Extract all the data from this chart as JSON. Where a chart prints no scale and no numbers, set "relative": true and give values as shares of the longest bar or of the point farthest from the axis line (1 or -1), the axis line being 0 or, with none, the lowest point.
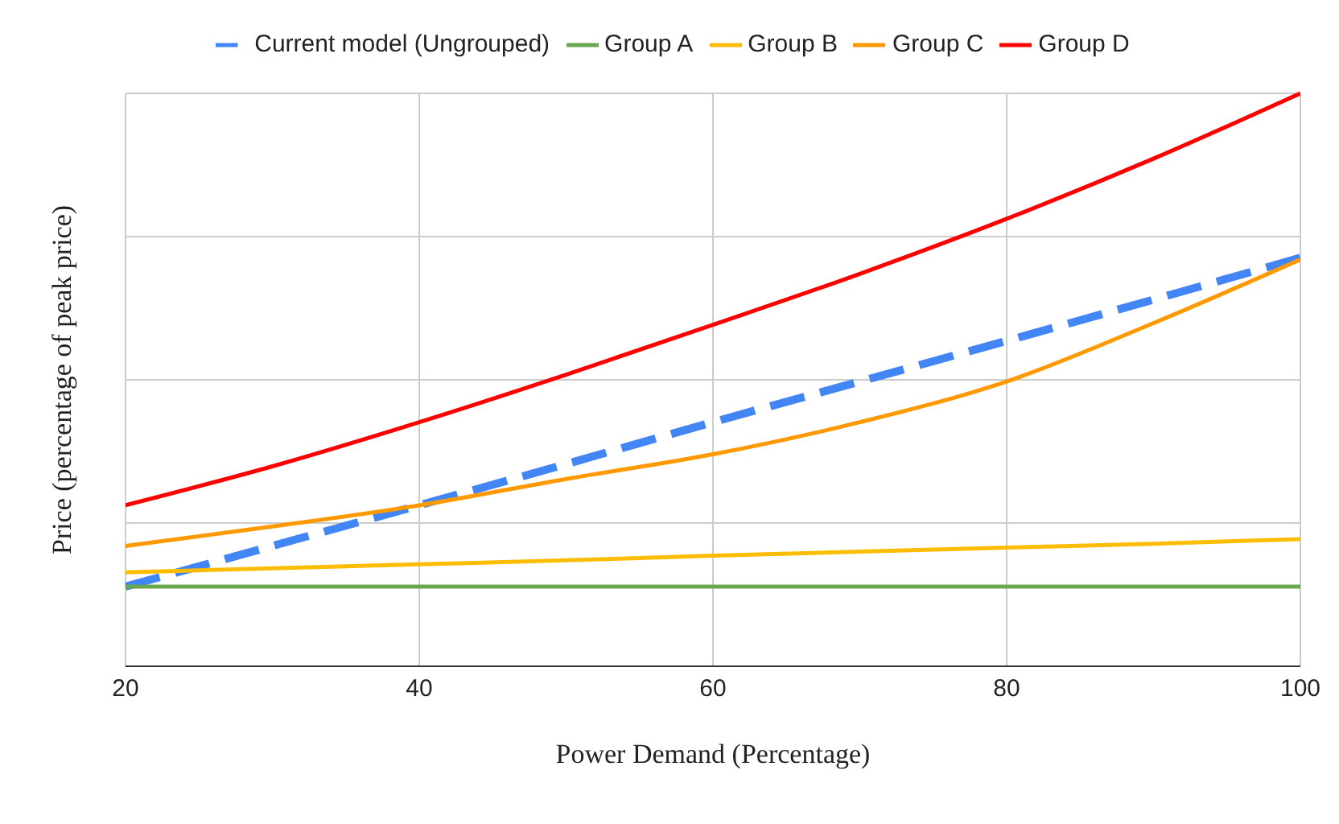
{
  "chart_data": {
    "type": "line",
    "relative": true,
    "xlabel": "Power Demand (Percentage)",
    "ylabel": "Price (percentage of peak price)",
    "x": [
      20,
      30,
      40,
      50,
      60,
      70,
      80,
      90,
      100
    ],
    "xlim": [
      20,
      100
    ],
    "xticks": [
      20,
      40,
      60,
      80,
      100
    ],
    "grid": true,
    "legend": "top",
    "marker": "none",
    "series": [
      {
        "name": "Current model (Ungrouped)",
        "color": "#4285f4",
        "line_style": "dashed",
        "values": [
          0.139,
          0.21,
          0.281,
          0.353,
          0.426,
          0.497,
          0.568,
          0.64,
          0.713
        ]
      },
      {
        "name": "Group A",
        "color": "#6aa84f",
        "values": [
          0.139,
          0.139,
          0.139,
          0.139,
          0.139,
          0.139,
          0.139,
          0.139,
          0.139
        ]
      },
      {
        "name": "Group B",
        "color": "#fbbc04",
        "values": [
          0.164,
          0.171,
          0.178,
          0.185,
          0.193,
          0.2,
          0.207,
          0.214,
          0.222
        ]
      },
      {
        "name": "Group C",
        "color": "#ff9900",
        "values": [
          0.21,
          0.244,
          0.281,
          0.327,
          0.37,
          0.426,
          0.497,
          0.599,
          0.71
        ]
      },
      {
        "name": "Group D",
        "color": "#ff0000",
        "values": [
          0.281,
          0.349,
          0.426,
          0.509,
          0.596,
          0.685,
          0.781,
          0.886,
          1
        ]
      }
    ]
  }
}
